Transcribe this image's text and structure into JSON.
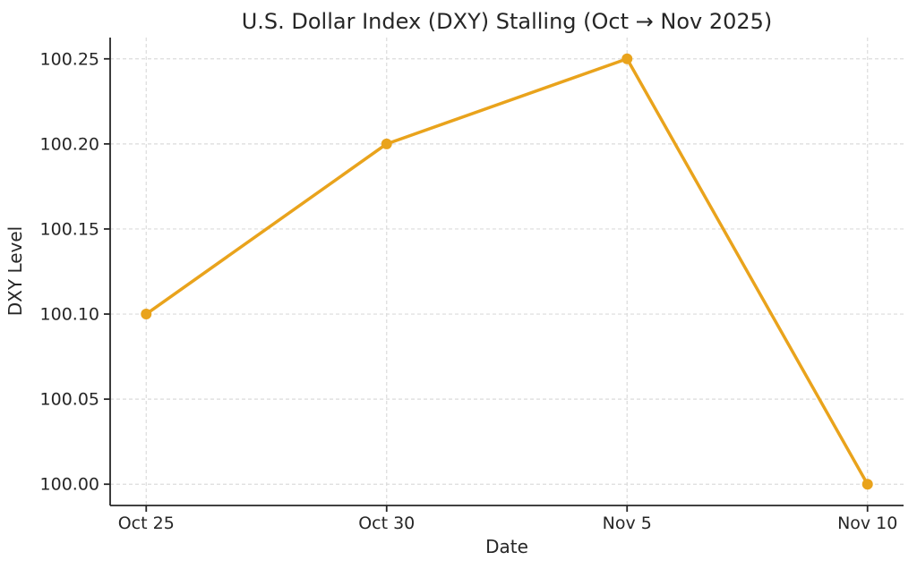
{
  "chart_data": {
    "type": "line",
    "title": "U.S. Dollar Index (DXY) Stalling (Oct → Nov 2025)",
    "xlabel": "Date",
    "ylabel": "DXY Level",
    "categories": [
      "Oct 25",
      "Oct 30",
      "Nov 5",
      "Nov 10"
    ],
    "values": [
      100.1,
      100.2,
      100.25,
      100.0
    ],
    "series": [
      {
        "name": "DXY",
        "values": [
          100.1,
          100.2,
          100.25,
          100.0
        ]
      }
    ],
    "y_ticks": [
      100.0,
      100.05,
      100.1,
      100.15,
      100.2,
      100.25
    ],
    "y_tick_labels": [
      "100.00",
      "100.05",
      "100.10",
      "100.15",
      "100.20",
      "100.25"
    ],
    "ylim": [
      99.9875,
      100.2625
    ],
    "grid": true,
    "grid_style": "dashed",
    "legend_position": "none",
    "colors": {
      "line": "#E9A31C",
      "marker": "#E9A31C",
      "grid": "#DBDBDB",
      "axis": "#262626",
      "text": "#262626",
      "background": "#FFFFFF"
    }
  }
}
